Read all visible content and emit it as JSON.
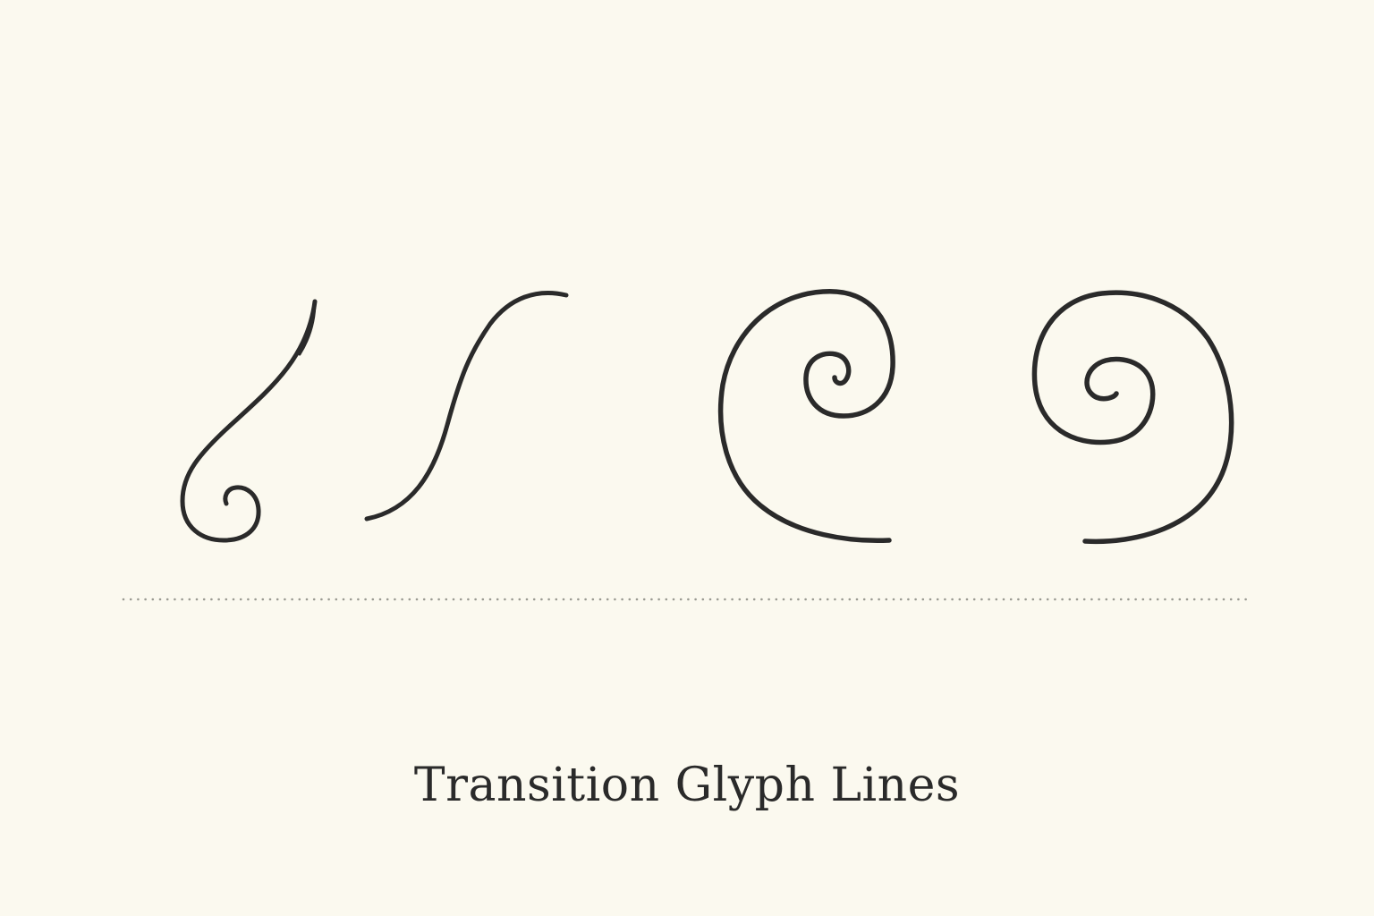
{
  "caption": "Transition Glyph Lines",
  "colors": {
    "paper": "#fbf9ef",
    "ink": "#2a2a2a",
    "dots": "#9a9a92"
  },
  "glyphs": [
    {
      "name": "hook-swirl-glyph",
      "kind": "diagonal stroke ending in a small curl"
    },
    {
      "name": "s-curve-glyph",
      "kind": "tapered S-curve"
    },
    {
      "name": "spiral-open-right-glyph",
      "kind": "spiral opening to the lower right"
    },
    {
      "name": "spiral-open-left-glyph",
      "kind": "spiral opening to the lower left"
    }
  ]
}
